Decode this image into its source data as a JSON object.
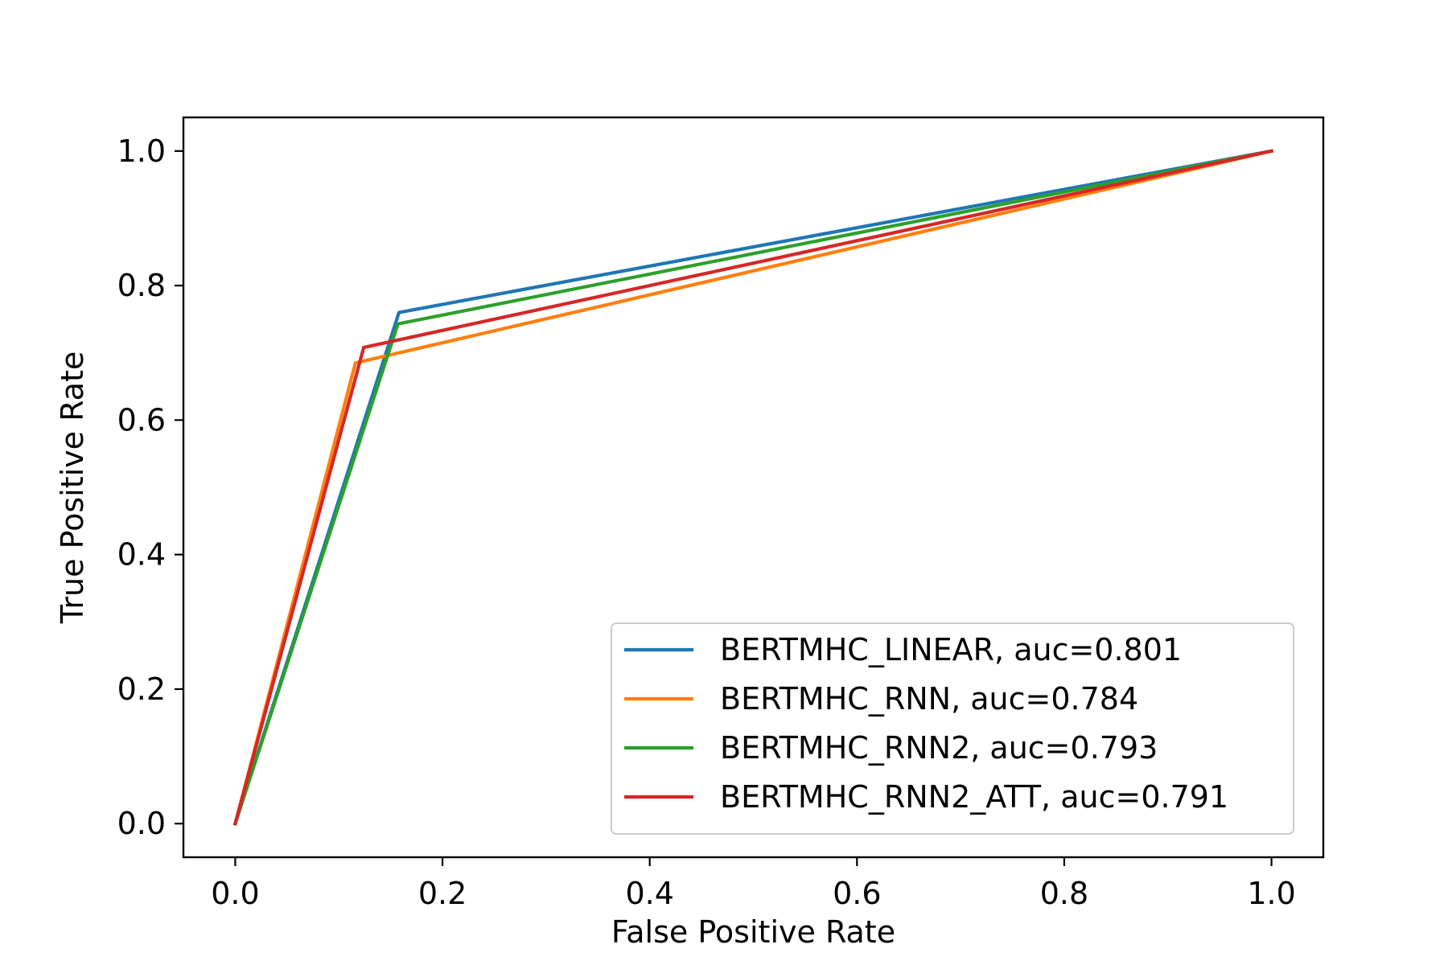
{
  "chart_data": {
    "type": "line",
    "title": "",
    "xlabel": "False Positive Rate",
    "ylabel": "True Positive Rate",
    "xlim": [
      -0.05,
      1.05
    ],
    "ylim": [
      -0.05,
      1.05
    ],
    "xticks": [
      0.0,
      0.2,
      0.4,
      0.6,
      0.8,
      1.0
    ],
    "yticks": [
      0.0,
      0.2,
      0.4,
      0.6,
      0.8,
      1.0
    ],
    "xtick_labels": [
      "0.0",
      "0.2",
      "0.4",
      "0.6",
      "0.8",
      "1.0"
    ],
    "ytick_labels": [
      "0.0",
      "0.2",
      "0.4",
      "0.6",
      "0.8",
      "1.0"
    ],
    "grid": false,
    "legend_position": "lower-right",
    "series": [
      {
        "name": "BERTMHC_LINEAR, auc=0.801",
        "color": "#1f77b4",
        "x": [
          0.0,
          0.158,
          1.0
        ],
        "y": [
          0.0,
          0.76,
          1.0
        ]
      },
      {
        "name": "BERTMHC_RNN, auc=0.784",
        "color": "#ff7f0e",
        "x": [
          0.0,
          0.116,
          1.0
        ],
        "y": [
          0.0,
          0.685,
          1.0
        ]
      },
      {
        "name": "BERTMHC_RNN2, auc=0.793",
        "color": "#2ca02c",
        "x": [
          0.0,
          0.157,
          1.0
        ],
        "y": [
          0.0,
          0.743,
          1.0
        ]
      },
      {
        "name": "BERTMHC_RNN2_ATT, auc=0.791",
        "color": "#d62728",
        "x": [
          0.0,
          0.124,
          1.0
        ],
        "y": [
          0.0,
          0.708,
          1.0
        ]
      }
    ]
  }
}
